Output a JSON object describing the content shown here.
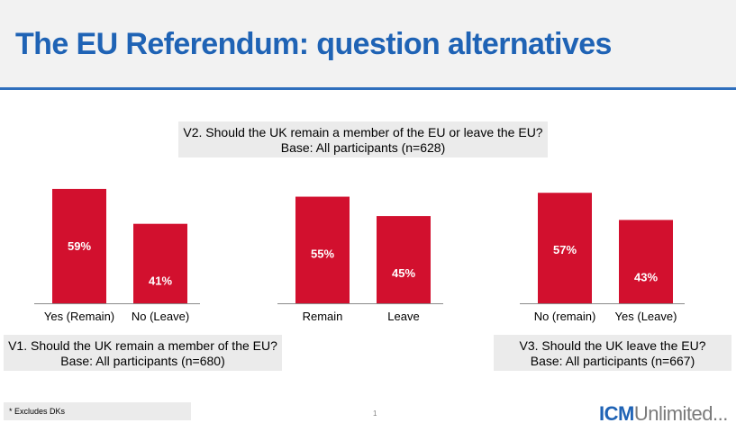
{
  "header": {
    "title": "The EU Referendum: question alternatives"
  },
  "questions": {
    "v1": {
      "question": "V1. Should the UK remain a member of the EU?",
      "base": "Base: All participants (n=680)"
    },
    "v2": {
      "question": "V2. Should the UK remain a member of the EU or leave the EU?",
      "base": "Base: All participants (n=628)"
    },
    "v3": {
      "question": "V3. Should the UK leave the EU?",
      "base": "Base: All participants (n=667)"
    }
  },
  "chart_data": {
    "type": "bar",
    "unit": "%",
    "bar_color": "#d2102e",
    "label_color": "#ffffff",
    "ylim": [
      0,
      65
    ],
    "groups": [
      {
        "question": "V1",
        "categories": [
          "Yes (Remain)",
          "No (Leave)"
        ],
        "values": [
          59,
          41
        ]
      },
      {
        "question": "V2",
        "categories": [
          "Remain",
          "Leave"
        ],
        "values": [
          55,
          45
        ]
      },
      {
        "question": "V3",
        "categories": [
          "No (remain)",
          "Yes (Leave)"
        ],
        "values": [
          57,
          43
        ]
      }
    ]
  },
  "footnote": "* Excludes DKs",
  "page_number": "1",
  "logo": {
    "primary": "ICM",
    "secondary": "Unlimited..."
  }
}
